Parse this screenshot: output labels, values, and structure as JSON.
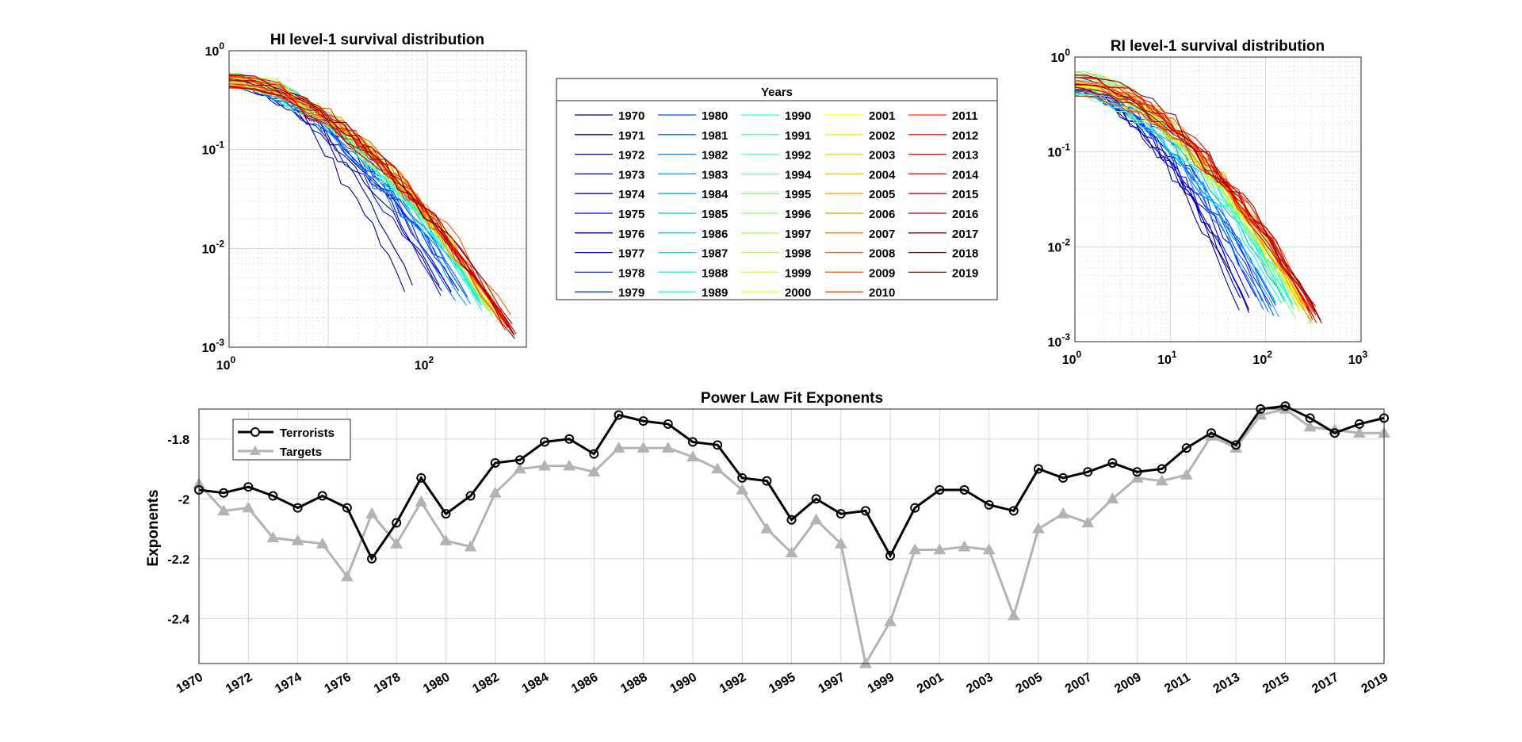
{
  "hi_chart": {
    "title": "HI level-1 survival distribution",
    "y_ticks": [
      {
        "e": "0"
      },
      {
        "e": "-1"
      },
      {
        "e": "-2"
      },
      {
        "e": "-3"
      }
    ],
    "x_ticks": [
      {
        "e": "0"
      },
      {
        "e": "2"
      }
    ]
  },
  "ri_chart": {
    "title": "RI level-1 survival distribution",
    "y_ticks": [
      {
        "e": "0"
      },
      {
        "e": "-1"
      },
      {
        "e": "-2"
      },
      {
        "e": "-3"
      }
    ],
    "x_ticks": [
      {
        "e": "0"
      },
      {
        "e": "1"
      },
      {
        "e": "2"
      },
      {
        "e": "3"
      }
    ]
  },
  "legend_years": {
    "title": "Years",
    "years": [
      "1970",
      "1971",
      "1972",
      "1973",
      "1974",
      "1975",
      "1976",
      "1977",
      "1978",
      "1979",
      "1980",
      "1981",
      "1982",
      "1983",
      "1984",
      "1985",
      "1986",
      "1987",
      "1988",
      "1989",
      "1990",
      "1991",
      "1992",
      "1994",
      "1995",
      "1996",
      "1997",
      "1998",
      "1999",
      "2000",
      "2001",
      "2002",
      "2003",
      "2004",
      "2005",
      "2006",
      "2007",
      "2008",
      "2009",
      "2010",
      "2011",
      "2012",
      "2013",
      "2014",
      "2015",
      "2016",
      "2017",
      "2018",
      "2019"
    ]
  },
  "chart_data": [
    {
      "type": "line",
      "title": "HI level-1 survival distribution",
      "scale": "log-log",
      "xlim": [
        1,
        1000
      ],
      "ylim": [
        0.001,
        1
      ],
      "grid": true,
      "note_series": "One survival curve per year listed in the Years legend"
    },
    {
      "type": "line",
      "title": "RI level-1 survival distribution",
      "scale": "log-log",
      "xlim": [
        1,
        1000
      ],
      "ylim": [
        0.001,
        1
      ],
      "grid": true
    },
    {
      "type": "line",
      "title": "Power Law Fit Exponents",
      "ylabel": "Exponents",
      "xlabel": "",
      "ylim": [
        -2.55,
        -1.7
      ],
      "y_ticks": [
        "-1.8",
        "-2",
        "-2.2",
        "-2.4"
      ],
      "x_ticks": [
        "1970",
        "1972",
        "1974",
        "1976",
        "1978",
        "1980",
        "1982",
        "1984",
        "1986",
        "1988",
        "1990",
        "1992",
        "1995",
        "1997",
        "1999",
        "2001",
        "2003",
        "2005",
        "2007",
        "2009",
        "2011",
        "2013",
        "2015",
        "2017",
        "2019"
      ],
      "legend_position": "top-left",
      "grid": true,
      "series": [
        {
          "name": "Terrorists",
          "color": "#000000",
          "marker": "circle",
          "values": [
            -1.97,
            -1.98,
            -1.96,
            -1.99,
            -2.03,
            -1.99,
            -2.03,
            -2.2,
            -2.08,
            -1.93,
            -2.05,
            -1.99,
            -1.88,
            -1.87,
            -1.81,
            -1.8,
            -1.85,
            -1.72,
            -1.74,
            -1.75,
            -1.81,
            -1.82,
            -1.93,
            -1.94,
            -2.07,
            -2.0,
            -2.05,
            -2.04,
            -2.19,
            -2.03,
            -1.97,
            -1.97,
            -2.02,
            -2.04,
            -1.9,
            -1.93,
            -1.91,
            -1.88,
            -1.91,
            -1.9,
            -1.83,
            -1.78,
            -1.82,
            -1.7,
            -1.69,
            -1.73,
            -1.78,
            -1.75,
            -1.73
          ]
        },
        {
          "name": "Targets",
          "color": "#b3b3b3",
          "marker": "triangle",
          "values": [
            -1.95,
            -2.04,
            -2.03,
            -2.13,
            -2.14,
            -2.15,
            -2.26,
            -2.05,
            -2.15,
            -2.01,
            -2.14,
            -2.16,
            -1.98,
            -1.9,
            -1.89,
            -1.89,
            -1.91,
            -1.83,
            -1.83,
            -1.83,
            -1.86,
            -1.9,
            -1.97,
            -2.1,
            -2.18,
            -2.07,
            -2.15,
            -2.55,
            -2.41,
            -2.17,
            -2.17,
            -2.16,
            -2.17,
            -2.39,
            -2.1,
            -2.05,
            -2.08,
            -2.0,
            -1.93,
            -1.94,
            -1.92,
            -1.79,
            -1.83,
            -1.72,
            -1.7,
            -1.76,
            -1.77,
            -1.78,
            -1.78
          ]
        }
      ]
    }
  ]
}
